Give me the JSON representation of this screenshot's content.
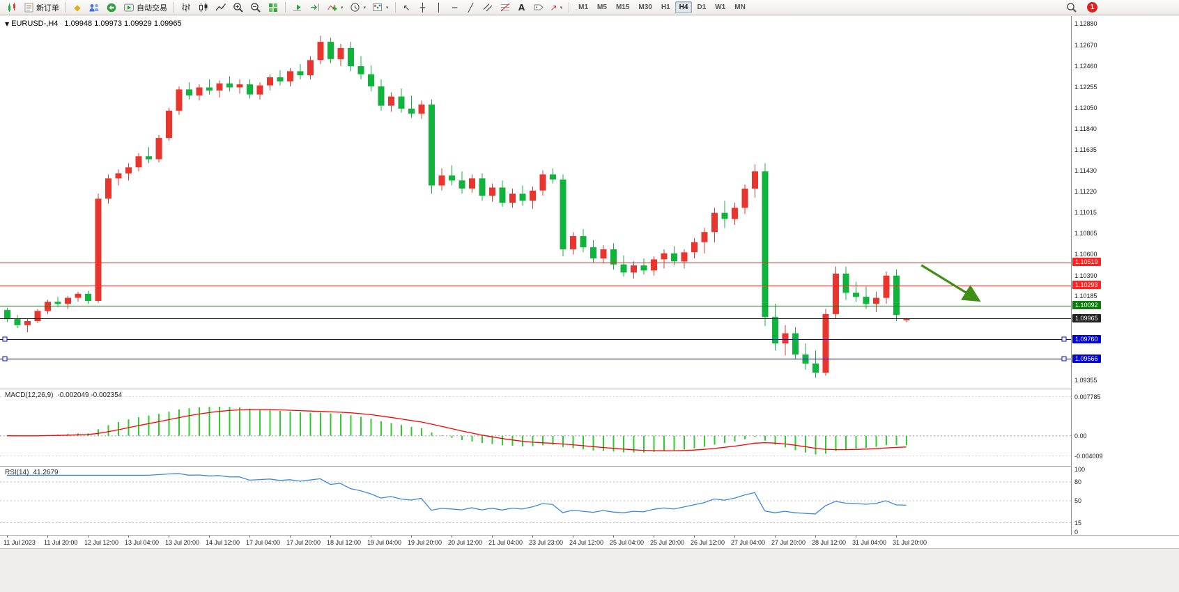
{
  "toolbar": {
    "new_order": "新订单",
    "autotrading": "自动交易",
    "timeframes": [
      "M1",
      "M5",
      "M15",
      "M30",
      "H1",
      "H4",
      "D1",
      "W1",
      "MN"
    ],
    "active_timeframe": "H4",
    "notification_count": "1",
    "icons": [
      "new-chart",
      "new-order",
      "market-watch",
      "data-window",
      "navigator",
      "autotrading",
      "bar-chart-mode",
      "candlestick-mode",
      "line-chart-mode",
      "zoom-in",
      "zoom-out",
      "tile-windows",
      "auto-scroll",
      "chart-shift",
      "indicators",
      "periods",
      "templates",
      "cursor",
      "crosshair",
      "vertical-line",
      "horizontal-line",
      "trendline",
      "equidistant-channel",
      "fibonacci-retracement",
      "text",
      "text-label",
      "arrows",
      "search",
      "notifications"
    ]
  },
  "chart_data": {
    "type": "candlestick",
    "title": "EURUSD-,H4",
    "ohlc_text": "1.09948 1.09973 1.09929 1.09965",
    "current_bar": {
      "open": 1.09948,
      "high": 1.09973,
      "low": 1.09929,
      "close": 1.09965
    },
    "up_color": "#e8352e",
    "down_color": "#10b33c",
    "y_range": [
      1.09355,
      1.1288
    ],
    "y_axis_labels": [
      "1.12880",
      "1.12670",
      "1.12460",
      "1.12255",
      "1.12050",
      "1.11840",
      "1.11635",
      "1.11430",
      "1.11220",
      "1.11015",
      "1.10805",
      "1.10600",
      "1.10390",
      "1.10185",
      "1.09355"
    ],
    "x_label_every": 4,
    "x_labels": [
      "11 Jul 2023",
      "11 Jul 20:00",
      "12 Jul 12:00",
      "13 Jul 04:00",
      "13 Jul 20:00",
      "14 Jul 12:00",
      "17 Jul 04:00",
      "17 Jul 20:00",
      "18 Jul 12:00",
      "19 Jul 04:00",
      "19 Jul 20:00",
      "20 Jul 12:00",
      "21 Jul 04:00",
      "23 Jul 23:00",
      "24 Jul 12:00",
      "25 Jul 04:00",
      "25 Jul 20:00",
      "26 Jul 12:00",
      "27 Jul 04:00",
      "27 Jul 20:00",
      "28 Jul 12:00",
      "31 Jul 04:00",
      "31 Jul 20:00"
    ],
    "candles": [
      [
        1.1005,
        1.1007,
        1.0993,
        1.0996
      ],
      [
        1.0996,
        1.1,
        1.0987,
        1.099
      ],
      [
        1.099,
        1.0996,
        1.0983,
        1.0994
      ],
      [
        1.0994,
        1.1006,
        1.0992,
        1.1004
      ],
      [
        1.1004,
        1.1015,
        1.1001,
        1.1013
      ],
      [
        1.1013,
        1.1018,
        1.1008,
        1.1011
      ],
      [
        1.1011,
        1.1019,
        1.1006,
        1.1017
      ],
      [
        1.1017,
        1.1023,
        1.1013,
        1.1021
      ],
      [
        1.1021,
        1.1024,
        1.1011,
        1.1014
      ],
      [
        1.1014,
        1.112,
        1.1012,
        1.1115
      ],
      [
        1.1115,
        1.1139,
        1.111,
        1.1135
      ],
      [
        1.1135,
        1.1144,
        1.1128,
        1.114
      ],
      [
        1.114,
        1.115,
        1.1133,
        1.1146
      ],
      [
        1.1146,
        1.116,
        1.1142,
        1.1157
      ],
      [
        1.1157,
        1.1166,
        1.115,
        1.1154
      ],
      [
        1.1154,
        1.1178,
        1.1151,
        1.1175
      ],
      [
        1.1175,
        1.1205,
        1.1172,
        1.1202
      ],
      [
        1.1202,
        1.1226,
        1.1198,
        1.1223
      ],
      [
        1.1223,
        1.123,
        1.1213,
        1.1217
      ],
      [
        1.1217,
        1.1228,
        1.1212,
        1.1225
      ],
      [
        1.1225,
        1.1233,
        1.1218,
        1.1222
      ],
      [
        1.1222,
        1.1232,
        1.1215,
        1.1229
      ],
      [
        1.1229,
        1.1236,
        1.1221,
        1.1225
      ],
      [
        1.1225,
        1.1233,
        1.1219,
        1.1228
      ],
      [
        1.1228,
        1.1233,
        1.1214,
        1.1218
      ],
      [
        1.1218,
        1.123,
        1.1213,
        1.1227
      ],
      [
        1.1227,
        1.1238,
        1.1222,
        1.1235
      ],
      [
        1.1235,
        1.1242,
        1.1227,
        1.1231
      ],
      [
        1.1231,
        1.1244,
        1.1226,
        1.1241
      ],
      [
        1.1241,
        1.1248,
        1.1233,
        1.1237
      ],
      [
        1.1237,
        1.1256,
        1.1233,
        1.1252
      ],
      [
        1.1252,
        1.1276,
        1.1248,
        1.127
      ],
      [
        1.127,
        1.1274,
        1.1249,
        1.1253
      ],
      [
        1.1253,
        1.1268,
        1.1246,
        1.1264
      ],
      [
        1.1264,
        1.127,
        1.1241,
        1.1246
      ],
      [
        1.1246,
        1.1256,
        1.1233,
        1.1238
      ],
      [
        1.1238,
        1.1247,
        1.1221,
        1.1226
      ],
      [
        1.1226,
        1.1233,
        1.1202,
        1.1207
      ],
      [
        1.1207,
        1.122,
        1.1201,
        1.1216
      ],
      [
        1.1216,
        1.1224,
        1.12,
        1.1204
      ],
      [
        1.1204,
        1.1217,
        1.1195,
        1.1199
      ],
      [
        1.1199,
        1.1212,
        1.1194,
        1.1208
      ],
      [
        1.1208,
        1.1213,
        1.112,
        1.1128
      ],
      [
        1.1128,
        1.1145,
        1.1123,
        1.1138
      ],
      [
        1.1138,
        1.1148,
        1.1128,
        1.1133
      ],
      [
        1.1133,
        1.1142,
        1.112,
        1.1125
      ],
      [
        1.1125,
        1.1139,
        1.1121,
        1.1135
      ],
      [
        1.1135,
        1.114,
        1.1113,
        1.1118
      ],
      [
        1.1118,
        1.113,
        1.1112,
        1.1126
      ],
      [
        1.1126,
        1.1133,
        1.1107,
        1.1111
      ],
      [
        1.1111,
        1.1125,
        1.1106,
        1.112
      ],
      [
        1.112,
        1.1128,
        1.1108,
        1.1113
      ],
      [
        1.1113,
        1.1127,
        1.1105,
        1.1123
      ],
      [
        1.1123,
        1.1143,
        1.1118,
        1.1139
      ],
      [
        1.1139,
        1.1145,
        1.113,
        1.1134
      ],
      [
        1.1134,
        1.1139,
        1.1058,
        1.1065
      ],
      [
        1.1065,
        1.1082,
        1.106,
        1.1078
      ],
      [
        1.1078,
        1.1085,
        1.1062,
        1.1067
      ],
      [
        1.1067,
        1.1074,
        1.1052,
        1.1056
      ],
      [
        1.1056,
        1.1069,
        1.1051,
        1.1065
      ],
      [
        1.1065,
        1.1071,
        1.1045,
        1.105
      ],
      [
        1.105,
        1.1059,
        1.1038,
        1.1042
      ],
      [
        1.1042,
        1.1053,
        1.1036,
        1.1049
      ],
      [
        1.1049,
        1.1056,
        1.104,
        1.1044
      ],
      [
        1.1044,
        1.1058,
        1.1039,
        1.1055
      ],
      [
        1.1055,
        1.1065,
        1.1046,
        1.1061
      ],
      [
        1.1061,
        1.1068,
        1.1049,
        1.1053
      ],
      [
        1.1053,
        1.1065,
        1.1046,
        1.1062
      ],
      [
        1.1062,
        1.1076,
        1.1056,
        1.1072
      ],
      [
        1.1072,
        1.1086,
        1.1061,
        1.1082
      ],
      [
        1.1082,
        1.1106,
        1.1072,
        1.1101
      ],
      [
        1.1101,
        1.1113,
        1.1086,
        1.1095
      ],
      [
        1.1095,
        1.1111,
        1.1089,
        1.1106
      ],
      [
        1.1106,
        1.1129,
        1.11,
        1.1125
      ],
      [
        1.1125,
        1.1149,
        1.1116,
        1.1142
      ],
      [
        1.1142,
        1.115,
        1.0989,
        1.0998
      ],
      [
        1.0998,
        1.1011,
        1.0965,
        1.0972
      ],
      [
        1.0972,
        1.099,
        1.096,
        1.0982
      ],
      [
        1.0982,
        1.0988,
        1.0956,
        1.0961
      ],
      [
        1.0961,
        1.0972,
        1.0946,
        1.0952
      ],
      [
        1.0952,
        1.0965,
        1.0938,
        1.0943
      ],
      [
        1.0943,
        1.1006,
        1.094,
        1.1001
      ],
      [
        1.1001,
        1.1048,
        1.0996,
        1.1041
      ],
      [
        1.1041,
        1.1048,
        1.1015,
        1.1022
      ],
      [
        1.1022,
        1.1033,
        1.1013,
        1.1018
      ],
      [
        1.1018,
        1.1029,
        1.1006,
        1.1011
      ],
      [
        1.1011,
        1.1023,
        1.1003,
        1.1017
      ],
      [
        1.1017,
        1.1043,
        1.1011,
        1.1039
      ],
      [
        1.1039,
        1.1045,
        1.0994,
        1.1
      ],
      [
        1.09948,
        1.09973,
        1.09929,
        1.09965
      ]
    ],
    "hlines": [
      {
        "name": "hline-red-upper",
        "price": 1.10519,
        "badge": "1.10519",
        "color": "#ff2020"
      },
      {
        "name": "hline-red-lower",
        "price": 1.10293,
        "badge": "1.10293",
        "color": "#ff2020"
      },
      {
        "name": "hline-green",
        "price": 1.10092,
        "badge": "1.10092",
        "color": "#0a7d0a"
      },
      {
        "name": "bid-price-line",
        "price": 1.09965,
        "badge": "1.09965",
        "color": "#222222"
      },
      {
        "name": "hline-blue-upper",
        "price": 1.0976,
        "badge": "1.09760",
        "color": "#0000dd",
        "handles": true
      },
      {
        "name": "hline-blue-lower",
        "price": 1.09566,
        "badge": "1.09566",
        "color": "#0000dd",
        "handles": true
      }
    ],
    "arrow": {
      "i1": 90.5,
      "p1": 1.10493,
      "i2": 96.2,
      "p2": 1.10143,
      "color": "#3e9016"
    },
    "indicator_macd": {
      "label": "MACD(12,26,9)",
      "values_text": "-0.002049 -0.002354",
      "macd_value": -0.002049,
      "signal_value": -0.002354,
      "fast": 12,
      "slow": 26,
      "signal": 9,
      "range": [
        -0.00545,
        0.00869
      ],
      "axis_labels": [
        "0.007785",
        "0.00",
        "-0.004009"
      ],
      "histogram_color": "#2fcb2f",
      "signal_color": "#ff0000"
    },
    "indicator_rsi": {
      "label": "RSI(14)",
      "value": "41.2679",
      "period": 14,
      "levels": [
        80,
        50,
        15
      ],
      "axis_labels": [
        "100",
        "80",
        "50",
        "15",
        "0"
      ],
      "color": "#3a87e0"
    }
  }
}
